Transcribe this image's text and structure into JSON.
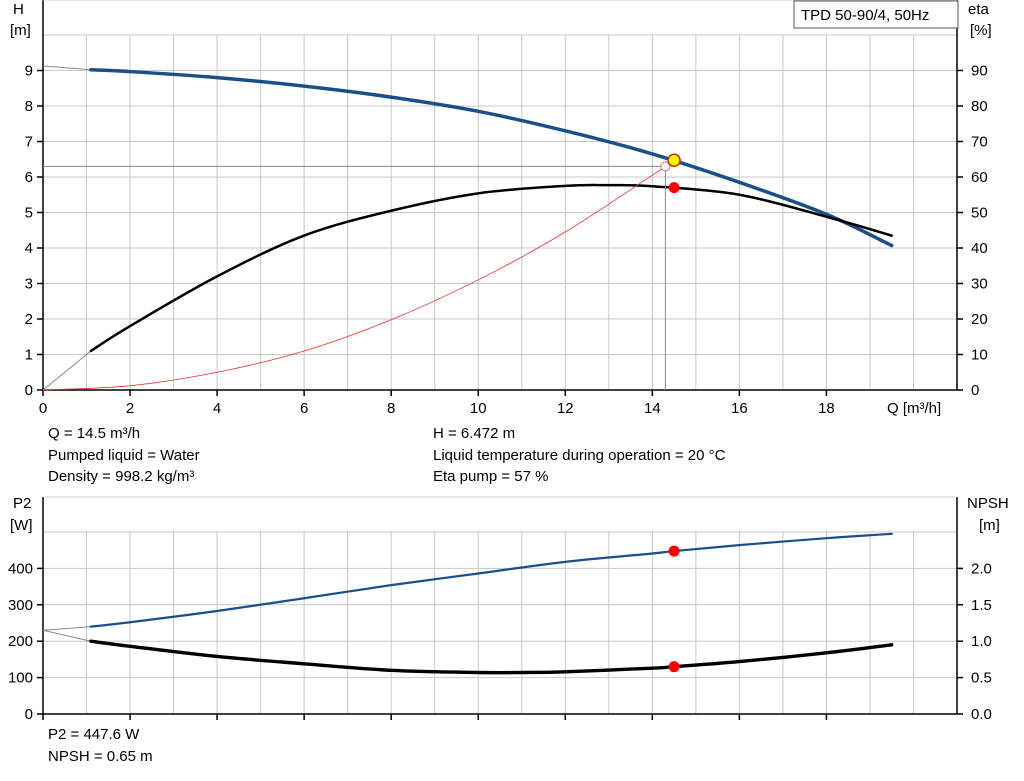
{
  "chart_data": [
    {
      "type": "line",
      "title": "TPD 50-90/4, 50Hz",
      "xlabel": "Q [m³/h]",
      "ylabel_left": [
        "H",
        "[m]"
      ],
      "ylabel_right": [
        "eta",
        "[%]"
      ],
      "xlim": [
        0,
        21
      ],
      "ylim_left": [
        0,
        10
      ],
      "ylim_right": [
        0,
        100
      ],
      "x_ticks": [
        "0",
        "2",
        "4",
        "6",
        "8",
        "10",
        "12",
        "14",
        "16",
        "18"
      ],
      "y_left_ticks": [
        "0",
        "1",
        "2",
        "3",
        "4",
        "5",
        "6",
        "7",
        "8",
        "9"
      ],
      "y_right_ticks": [
        "0",
        "10",
        "20",
        "30",
        "40",
        "50",
        "60",
        "70",
        "80",
        "90"
      ],
      "grid": true,
      "series": [
        {
          "axis": "left",
          "color": "#1a4f8a",
          "width": 3.5,
          "x": [
            0,
            1.1,
            2,
            4,
            6,
            8,
            10,
            12,
            14,
            16,
            18,
            19.5
          ],
          "y": [
            9.13,
            9.02,
            8.97,
            8.8,
            8.56,
            8.25,
            7.85,
            7.3,
            6.65,
            5.85,
            4.95,
            4.07
          ],
          "extrapolate_to": 1.1
        },
        {
          "axis": "right",
          "color": "#000000",
          "width": 2.5,
          "x": [
            0,
            1.1,
            2,
            4,
            6,
            8,
            10,
            12,
            13,
            14,
            16,
            18,
            19.5
          ],
          "y": [
            0,
            11,
            18,
            32,
            43.5,
            50.5,
            55.4,
            57.5,
            57.7,
            57.4,
            55,
            48.8,
            43.5
          ],
          "extrapolate_to": 1.1
        },
        {
          "axis": "left",
          "color": "#e83030",
          "width": 0.8,
          "x": [
            0,
            2,
            4,
            6,
            8,
            10,
            12,
            14,
            14.3
          ],
          "y": [
            0,
            0.12,
            0.5,
            1.1,
            1.98,
            3.1,
            4.45,
            6.05,
            6.3
          ]
        }
      ],
      "duty_point": {
        "q": 14.5,
        "h": 6.472,
        "eta": 57
      },
      "reference_point": {
        "q": 14.3,
        "h": 6.3
      }
    },
    {
      "type": "line",
      "ylabel_left": [
        "P2",
        "[W]"
      ],
      "ylabel_right": [
        "NPSH",
        "[m]"
      ],
      "xlim": [
        0,
        21
      ],
      "ylim_left": [
        0,
        500
      ],
      "ylim_right": [
        0,
        2.5
      ],
      "y_left_ticks": [
        "0",
        "100",
        "200",
        "300",
        "400"
      ],
      "y_right_ticks": [
        "0.0",
        "0.5",
        "1.0",
        "1.5",
        "2.0"
      ],
      "grid": true,
      "series": [
        {
          "axis": "left",
          "color": "#1a4f8a",
          "width": 2.2,
          "x": [
            0,
            1.1,
            2,
            4,
            6,
            8,
            10,
            12,
            14,
            14.5,
            16,
            18,
            19.5
          ],
          "y": [
            230,
            240,
            252,
            283,
            318,
            354,
            386,
            418,
            441,
            447.6,
            464,
            483,
            495
          ],
          "extrapolate_to": 1.1
        },
        {
          "axis": "right",
          "color": "#000000",
          "width": 3.4,
          "x": [
            0,
            1.1,
            2,
            4,
            6,
            8,
            10,
            11,
            12,
            14,
            14.5,
            16,
            18,
            19.5
          ],
          "y": [
            1.15,
            1.0,
            0.93,
            0.79,
            0.69,
            0.6,
            0.57,
            0.57,
            0.58,
            0.63,
            0.65,
            0.72,
            0.84,
            0.95
          ],
          "extrapolate_to": 1.1
        }
      ],
      "duty_points": [
        {
          "axis": "left",
          "q": 14.5,
          "value": 447.6
        },
        {
          "axis": "right",
          "q": 14.5,
          "value": 0.65
        }
      ]
    }
  ],
  "info_top": {
    "q": "Q = 14.5 m³/h",
    "h": "H = 6.472 m",
    "liquid": "Pumped liquid = Water",
    "temp": "Liquid temperature during operation = 20 °C",
    "density": "Density = 998.2 kg/m³",
    "eta": "Eta pump = 57 %"
  },
  "info_bottom": {
    "p2": "P2 = 447.6 W",
    "npsh": "NPSH = 0.65 m"
  },
  "colors": {
    "grid": "#c8c8c8",
    "axis": "#000000",
    "duty_marker": "#ff0000",
    "duty_marker_head": "#ffff00",
    "duty_marker_head_border": "#c03000"
  }
}
